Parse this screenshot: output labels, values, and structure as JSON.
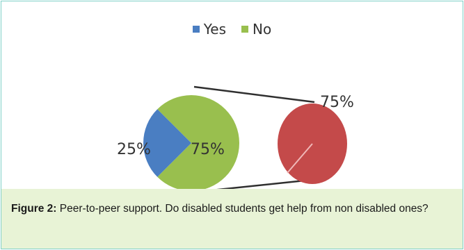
{
  "chart_data": {
    "type": "pie",
    "subtype": "pie-of-pie",
    "legend_position": "top",
    "series": [
      {
        "name": "Yes",
        "value": 25,
        "label": "25%",
        "color": "#4a7ec2"
      },
      {
        "name": "No",
        "value": 75,
        "label": "75%",
        "color": "#99bf4e"
      }
    ],
    "secondary_pie": {
      "label": "75%",
      "color": "#c44a4a",
      "divider_color": "#f0b8b8"
    }
  },
  "caption": {
    "label": "Figure 2:",
    "text": "Peer-to-peer support. Do disabled students get help from non disabled ones?"
  },
  "connector_color": "#2f2f2f"
}
